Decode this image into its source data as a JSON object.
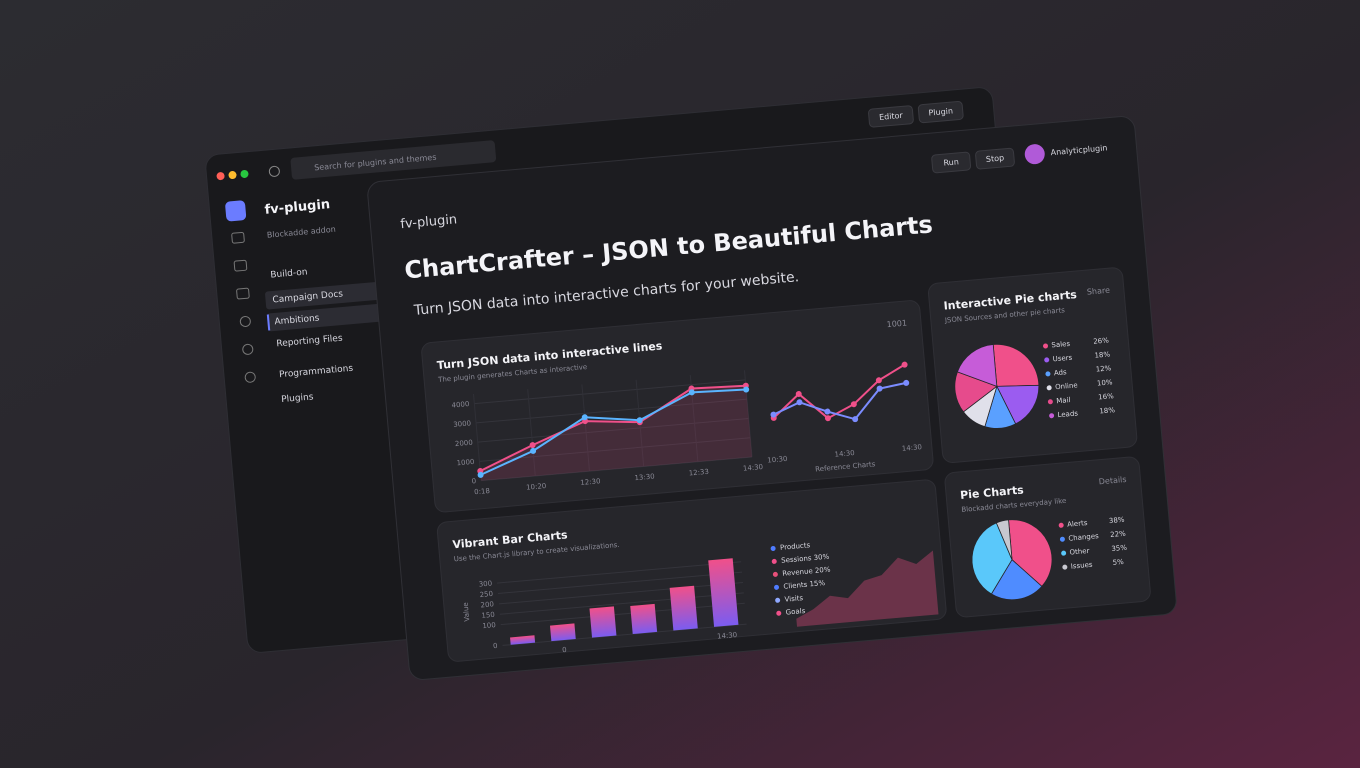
{
  "back_window": {
    "search": "Search for plugins and themes",
    "app_name": "fv-plugin",
    "subtitle": "Blockadde addon",
    "nav": [
      "Build-on",
      "Campaign Docs",
      "Ambitions",
      "Reporting Files",
      "Programmations",
      "Plugins"
    ],
    "toolbar": [
      "Editor",
      "Plugin"
    ]
  },
  "header": {
    "buttons": [
      "Run",
      "Stop"
    ],
    "user": "Analyticplugin"
  },
  "front": {
    "breadcrumb": "fv-plugin",
    "title": "ChartCrafter – JSON to Beautiful Charts",
    "subtitle": "Turn JSON data into interactive charts for your website."
  },
  "line_card": {
    "type": "line",
    "title": "Turn JSON data into interactive lines",
    "subtitle": "The plugin generates Charts as interactive",
    "badge": "1001",
    "categories": [
      "0:18",
      "10:20",
      "12:30",
      "13:30",
      "12:33",
      "14:30"
    ],
    "ylim": [
      0,
      4500
    ],
    "yticks": [
      0,
      1000,
      2000,
      3000,
      4000
    ],
    "series": [
      {
        "color": "#f0508a",
        "values": [
          500,
          1600,
          2600,
          2300,
          3800,
          3700
        ]
      },
      {
        "color": "#5ab4ff",
        "values": [
          300,
          1300,
          2800,
          2400,
          3600,
          3500
        ]
      }
    ]
  },
  "mini_chart": {
    "type": "line",
    "caption": "Reference Charts",
    "xlabels": [
      "10:30",
      "14:30",
      "14:30"
    ],
    "ylim": [
      0,
      4500
    ],
    "series": [
      {
        "color": "#f0508a",
        "values": [
          1800,
          3100,
          1500,
          2200,
          3500,
          4300
        ]
      },
      {
        "color": "#7b8cff",
        "values": [
          2000,
          2600,
          1900,
          1300,
          3000,
          3200
        ]
      }
    ]
  },
  "bar_card": {
    "type": "bar",
    "title": "Vibrant Bar Charts",
    "subtitle": "Use the Chart.js library to create visualizations.",
    "axis_label": "Value",
    "categories": [
      null,
      "0",
      null,
      null,
      null,
      "14:30"
    ],
    "values": [
      35,
      75,
      140,
      135,
      205,
      320
    ],
    "colors": [
      "#f0508a",
      "#7b5cf0"
    ],
    "ylim": [
      0,
      350
    ],
    "yticks": [
      0,
      100,
      150,
      200,
      250,
      300
    ]
  },
  "area_chart": {
    "type": "area",
    "color": "#c2456f",
    "ylim": [
      0,
      100
    ],
    "values": [
      10,
      20,
      35,
      30,
      50,
      55,
      75,
      65,
      80
    ],
    "legend": [
      {
        "name": "Products",
        "color": "#4f7cff"
      },
      {
        "name": "Sessions 30%",
        "color": "#f0508a"
      },
      {
        "name": "Revenue 20%",
        "color": "#e8507a"
      },
      {
        "name": "Clients 15%",
        "color": "#4f7cff"
      },
      {
        "name": "Visits",
        "color": "#8fa8ff"
      },
      {
        "name": "Goals",
        "color": "#f0508a"
      }
    ]
  },
  "pie_card": {
    "type": "pie",
    "title": "Interactive Pie charts",
    "subtitle": "JSON Sources and other pie charts",
    "badge": "Share",
    "categories": [
      "Sales",
      "Users",
      "Ads",
      "Online",
      "Mail",
      "Leads"
    ],
    "values": [
      26,
      18,
      12,
      10,
      16,
      18
    ],
    "value_labels": [
      "26%",
      "18%",
      "12%",
      "10%",
      "16%",
      "18%"
    ],
    "colors": [
      "#f0508a",
      "#9b5cf0",
      "#5aa0ff",
      "#e0e0ea",
      "#e64b8c",
      "#c65cd8"
    ]
  },
  "pie2_card": {
    "type": "pie",
    "title": "Pie Charts",
    "subtitle": "Blockadd charts everyday like",
    "badge": "Details",
    "categories": [
      "Alerts",
      "Changes",
      "Other",
      "Issues"
    ],
    "values": [
      38,
      22,
      35,
      5
    ],
    "value_labels": [
      "38%",
      "22%",
      "35%",
      "5%"
    ],
    "colors": [
      "#f0508a",
      "#4f8cff",
      "#5ac8fa",
      "#c8c8d0"
    ]
  }
}
